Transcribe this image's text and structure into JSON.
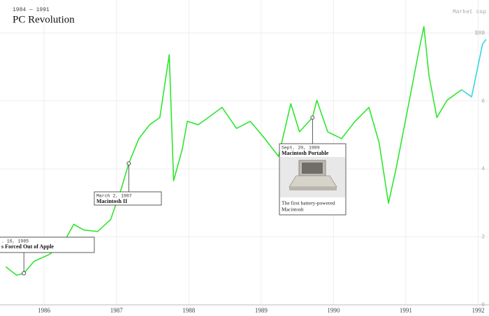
{
  "chart_data": {
    "type": "line",
    "subtitle": "1984 — 1991",
    "title": "PC Revolution",
    "y_label": "Market cap",
    "series": [
      {
        "color": "#2ee62e",
        "x": [
          1985.47,
          1985.62,
          1985.72,
          1985.86,
          1986.07,
          1986.26,
          1986.41,
          1986.55,
          1986.74,
          1986.92,
          1987.07,
          1987.17,
          1987.31,
          1987.46,
          1987.6,
          1987.73,
          1987.79,
          1987.91,
          1987.98,
          1988.13,
          1988.27,
          1988.46,
          1988.66,
          1988.85,
          1989.05,
          1989.24,
          1989.41,
          1989.53,
          1989.71,
          1989.77,
          1989.92,
          1990.11,
          1990.3,
          1990.49,
          1990.63,
          1990.76,
          1990.87,
          1991.04,
          1991.17,
          1991.25,
          1991.32,
          1991.43,
          1991.57,
          1991.77
        ],
        "values": [
          1.12,
          0.87,
          0.93,
          1.28,
          1.48,
          1.79,
          2.37,
          2.2,
          2.16,
          2.51,
          3.44,
          4.16,
          4.89,
          5.3,
          5.51,
          7.36,
          3.65,
          4.58,
          5.4,
          5.3,
          5.51,
          5.81,
          5.19,
          5.4,
          4.89,
          4.37,
          5.92,
          5.09,
          5.51,
          6.02,
          5.09,
          4.89,
          5.4,
          5.81,
          4.78,
          2.99,
          4.06,
          5.92,
          7.36,
          8.19,
          6.74,
          5.51,
          6.02,
          6.33
        ]
      },
      {
        "color": "#33d6e6",
        "x": [
          1991.77,
          1991.91,
          1992.06,
          1992.11
        ],
        "values": [
          6.33,
          6.12,
          7.67,
          7.81
        ]
      }
    ],
    "xlim": [
      1985.39,
      1992.15
    ],
    "xticks": [
      1986,
      1987,
      1988,
      1989,
      1990,
      1991,
      1992
    ],
    "ylim": [
      0,
      9
    ],
    "yticks": [
      {
        "value": 8,
        "label": "$8B"
      },
      6,
      4,
      2,
      0
    ],
    "grid": true,
    "annotations": [
      {
        "date": ". 16, 1985",
        "label": "s Forced Out of Apple",
        "x": 1985.72,
        "y": 0.93
      },
      {
        "date": "March 2, 1987",
        "label": "Macintosh II",
        "x": 1987.17,
        "y": 4.16
      },
      {
        "date": "Sept. 20, 1989",
        "label": "Macintosh Portable",
        "description": [
          "The first battery-powered",
          "Macintosh"
        ],
        "x": 1989.71,
        "y": 5.51
      }
    ]
  }
}
